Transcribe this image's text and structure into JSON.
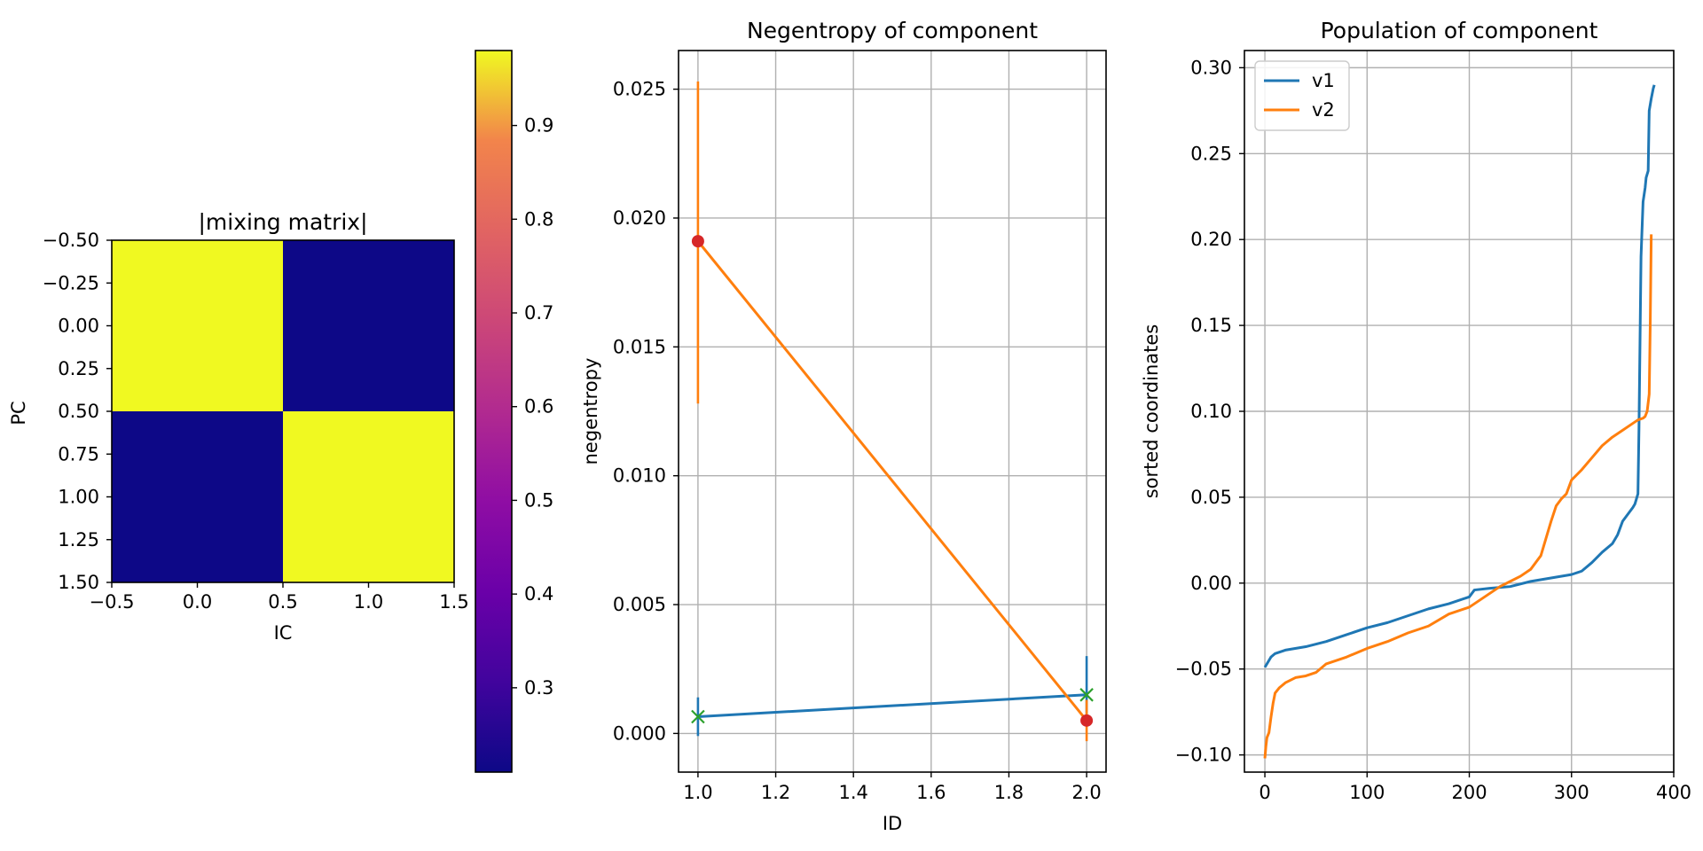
{
  "chart_data": [
    {
      "type": "heatmap",
      "title": "|mixing matrix|",
      "xlabel": "IC",
      "ylabel": "PC",
      "xlim": [
        -0.5,
        1.5
      ],
      "ylim": [
        1.5,
        -0.5
      ],
      "x_ticks": [
        "−0.5",
        "0.0",
        "0.5",
        "1.0",
        "1.5"
      ],
      "y_ticks": [
        "−0.50",
        "−0.25",
        "0.00",
        "0.25",
        "0.50",
        "0.75",
        "1.00",
        "1.25",
        "1.50"
      ],
      "colormap": "plasma",
      "matrix": [
        [
          0.98,
          0.21
        ],
        [
          0.21,
          0.98
        ]
      ],
      "colorbar": {
        "range": [
          0.21,
          0.98
        ],
        "ticks": [
          0.3,
          0.4,
          0.5,
          0.6,
          0.7,
          0.8,
          0.9
        ],
        "tick_labels": [
          "0.3",
          "0.4",
          "0.5",
          "0.6",
          "0.7",
          "0.8",
          "0.9"
        ]
      }
    },
    {
      "type": "line",
      "title": "Negentropy of component",
      "xlabel": "ID",
      "ylabel": "negentropy",
      "xlim": [
        0.95,
        2.05
      ],
      "ylim": [
        -0.0015,
        0.0265
      ],
      "x_ticks": [
        "1.0",
        "1.2",
        "1.4",
        "1.6",
        "1.8",
        "2.0"
      ],
      "y_ticks": [
        "0.000",
        "0.005",
        "0.010",
        "0.015",
        "0.020",
        "0.025"
      ],
      "grid": true,
      "series": [
        {
          "color": "#1f77b4",
          "x": [
            1.0,
            2.0
          ],
          "values": [
            0.00065,
            0.0015
          ],
          "error_low": [
            -0.0001,
            0.0004
          ],
          "error_high": [
            0.0014,
            0.003
          ],
          "marker": "x",
          "marker_color": "#2ca02c"
        },
        {
          "color": "#ff7f0e",
          "x": [
            1.0,
            2.0
          ],
          "values": [
            0.0191,
            0.0005
          ],
          "error_low": [
            0.0128,
            -0.0003
          ],
          "error_high": [
            0.0253,
            0.0013
          ],
          "marker": "o",
          "marker_color": "#d62728"
        }
      ]
    },
    {
      "type": "line",
      "title": "Population of component",
      "xlabel": "",
      "ylabel": "sorted coordinates",
      "xlim": [
        -20,
        400
      ],
      "ylim": [
        -0.11,
        0.31
      ],
      "x_ticks": [
        "0",
        "100",
        "200",
        "300",
        "400"
      ],
      "y_ticks": [
        "−0.10",
        "−0.05",
        "0.00",
        "0.05",
        "0.10",
        "0.15",
        "0.20",
        "0.25",
        "0.30"
      ],
      "grid": true,
      "legend_position": "top-left",
      "series": [
        {
          "name": "v1",
          "color": "#1f77b4",
          "x": [
            0,
            3,
            6,
            10,
            20,
            40,
            60,
            80,
            100,
            120,
            140,
            160,
            180,
            200,
            205,
            220,
            240,
            260,
            280,
            300,
            310,
            320,
            330,
            340,
            345,
            350,
            355,
            360,
            362,
            364,
            365,
            366,
            367,
            368,
            370,
            372,
            373,
            375,
            376,
            378,
            380,
            381
          ],
          "values": [
            -0.049,
            -0.046,
            -0.043,
            -0.041,
            -0.039,
            -0.037,
            -0.034,
            -0.03,
            -0.026,
            -0.023,
            -0.019,
            -0.015,
            -0.012,
            -0.008,
            -0.004,
            -0.003,
            -0.002,
            0.001,
            0.003,
            0.005,
            0.007,
            0.012,
            0.018,
            0.023,
            0.028,
            0.036,
            0.04,
            0.044,
            0.046,
            0.05,
            0.052,
            0.09,
            0.14,
            0.19,
            0.222,
            0.23,
            0.236,
            0.24,
            0.275,
            0.282,
            0.288,
            0.29
          ]
        },
        {
          "name": "v2",
          "color": "#ff7f0e",
          "x": [
            0,
            1,
            2,
            4,
            6,
            8,
            10,
            14,
            20,
            30,
            40,
            50,
            60,
            80,
            100,
            120,
            140,
            160,
            180,
            200,
            210,
            220,
            230,
            240,
            250,
            260,
            270,
            275,
            280,
            285,
            290,
            295,
            300,
            310,
            320,
            330,
            340,
            350,
            360,
            365,
            370,
            372,
            374,
            375,
            376,
            377,
            378
          ],
          "values": [
            -0.102,
            -0.095,
            -0.09,
            -0.087,
            -0.078,
            -0.07,
            -0.064,
            -0.061,
            -0.058,
            -0.055,
            -0.054,
            -0.052,
            -0.047,
            -0.043,
            -0.038,
            -0.034,
            -0.029,
            -0.025,
            -0.018,
            -0.014,
            -0.01,
            -0.006,
            -0.002,
            0.001,
            0.004,
            0.008,
            0.016,
            0.026,
            0.036,
            0.045,
            0.049,
            0.052,
            0.06,
            0.066,
            0.073,
            0.08,
            0.085,
            0.089,
            0.093,
            0.095,
            0.096,
            0.097,
            0.1,
            0.105,
            0.11,
            0.15,
            0.203
          ]
        }
      ]
    }
  ]
}
